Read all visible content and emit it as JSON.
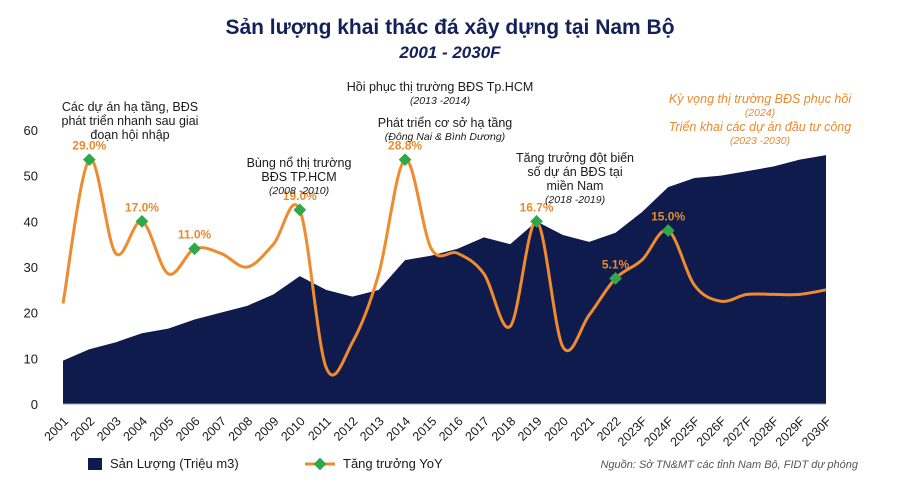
{
  "title": "Sản lượng khai thác đá xây dựng tại Nam Bộ",
  "subtitle": "2001 - 2030F",
  "source": "Nguồn: Sở TN&MT các tỉnh Nam Bộ, FIDT dự phóng",
  "legend": {
    "area_label": "Sản Lượng (Triệu m3)",
    "line_label": "Tăng trưởng YoY"
  },
  "annotations": {
    "a1": {
      "l1": "Các dự án hạ tầng, BĐS",
      "l2": "phát triển nhanh sau giai",
      "l3": "đoạn hội nhập"
    },
    "a2": {
      "l1": "Bùng nổ thị trường",
      "l2": "BĐS TP.HCM",
      "sub": "(2008 -2010)"
    },
    "a3": {
      "l1": "Hồi phục thị trường BĐS Tp.HCM",
      "sub": "(2013 -2014)"
    },
    "a4": {
      "l1": "Phát triển cơ sở hạ tầng",
      "sub": "(Đông Nai & Bình Dương)"
    },
    "a5": {
      "l1": "Tăng trưởng đột biến",
      "l2": "số dự án BĐS tại",
      "l3": "miền Nam",
      "sub": "(2018 -2019)"
    },
    "a6": {
      "l1": "Kỳ vọng thị trường BĐS phục hồi",
      "sub1": "(2024)",
      "l2": "Triển khai các dự án đầu tư công",
      "sub2": "(2023 -2030)"
    }
  },
  "colors": {
    "area": "#0f1b4c",
    "line": "#ef8a2e",
    "marker": "#2ea84a",
    "label": "#e88a2e"
  },
  "chart_data": {
    "type": "area",
    "categories": [
      "2001",
      "2002",
      "2003",
      "2004",
      "2005",
      "2006",
      "2007",
      "2008",
      "2009",
      "2010",
      "2011",
      "2012",
      "2013",
      "2014",
      "2015",
      "2016",
      "2017",
      "2018",
      "2019",
      "2020",
      "2021",
      "2022",
      "2023F",
      "2024F",
      "2025F",
      "2026F",
      "2027F",
      "2028F",
      "2029F",
      "2030F"
    ],
    "ylim": [
      0,
      60
    ],
    "yticks": [
      "0",
      "10",
      "20",
      "30",
      "40",
      "50",
      "60"
    ],
    "grid": false,
    "legend_position": "bottom-left",
    "series": [
      {
        "name": "Sản Lượng (Triệu m3)",
        "type": "area",
        "values": [
          9.5,
          12,
          13.5,
          15.5,
          16.5,
          18.5,
          20,
          21.5,
          24,
          28,
          25,
          23.5,
          25,
          31.5,
          32.5,
          34,
          36.5,
          35,
          40,
          37,
          35.5,
          37.5,
          42,
          47.5,
          49.5,
          50,
          51,
          52,
          53.5,
          54.5
        ]
      },
      {
        "name": "Tăng trưởng YoY",
        "type": "line",
        "values": [
          22,
          53.5,
          33,
          40,
          28.5,
          34,
          33,
          30,
          35,
          42.5,
          8,
          13.5,
          28.5,
          53.5,
          34,
          33,
          28.5,
          17,
          40,
          12.5,
          19.5,
          27.5,
          31.5,
          38,
          26,
          22.5,
          24,
          24,
          24,
          25
        ]
      }
    ],
    "highlight_points": [
      {
        "category": "2002",
        "label": "29.0%"
      },
      {
        "category": "2004",
        "label": "17.0%"
      },
      {
        "category": "2006",
        "label": "11.0%"
      },
      {
        "category": "2010",
        "label": "19.0%"
      },
      {
        "category": "2014",
        "label": "28.8%"
      },
      {
        "category": "2019",
        "label": "16.7%"
      },
      {
        "category": "2022",
        "label": "5.1%"
      },
      {
        "category": "2024F",
        "label": "15.0%"
      }
    ]
  }
}
